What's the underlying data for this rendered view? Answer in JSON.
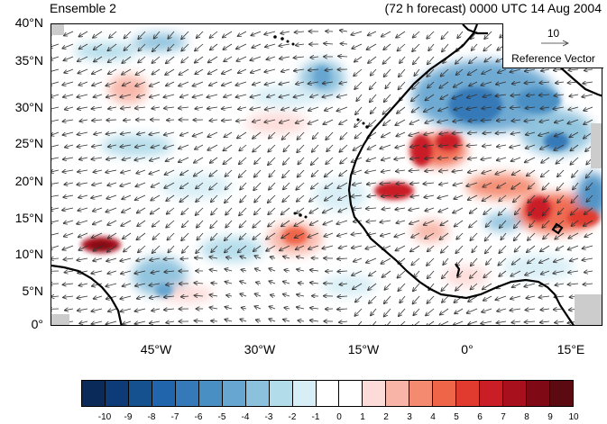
{
  "title_left": "Ensemble 2",
  "title_right": "(72 h forecast) 0000 UTC 14 Aug 2004",
  "lat_labels": [
    "40°N",
    "35°N",
    "30°N",
    "25°N",
    "20°N",
    "15°N",
    "10°N",
    "5°N",
    "0°"
  ],
  "lon_labels": [
    "45°W",
    "30°W",
    "15°W",
    "0°",
    "15°E"
  ],
  "reference_vector": {
    "magnitude": "10",
    "label": "Reference Vector"
  },
  "colorbar": {
    "labels": [
      "-10",
      "-9",
      "-8",
      "-7",
      "-6",
      "-5",
      "-4",
      "-3",
      "-2",
      "-1",
      "0",
      "1",
      "2",
      "3",
      "4",
      "5",
      "6",
      "7",
      "8",
      "9",
      "10"
    ],
    "colors": [
      "#0a2a5a",
      "#0d3b78",
      "#15508f",
      "#2166ac",
      "#3579b8",
      "#4a8fc4",
      "#67a6d1",
      "#8cc1dd",
      "#b2dcea",
      "#d7eef6",
      "#ffffff",
      "#ffffff",
      "#fddbd8",
      "#f8b4a6",
      "#f48a70",
      "#ef6548",
      "#e03b2e",
      "#c91e25",
      "#a8101d",
      "#7f0a16",
      "#5a0a10"
    ]
  },
  "map_colors": {
    "land": "#000000",
    "positive": "#d73027",
    "negative": "#4575b4",
    "arrow": "#333333",
    "mask": "#cccccc"
  }
}
